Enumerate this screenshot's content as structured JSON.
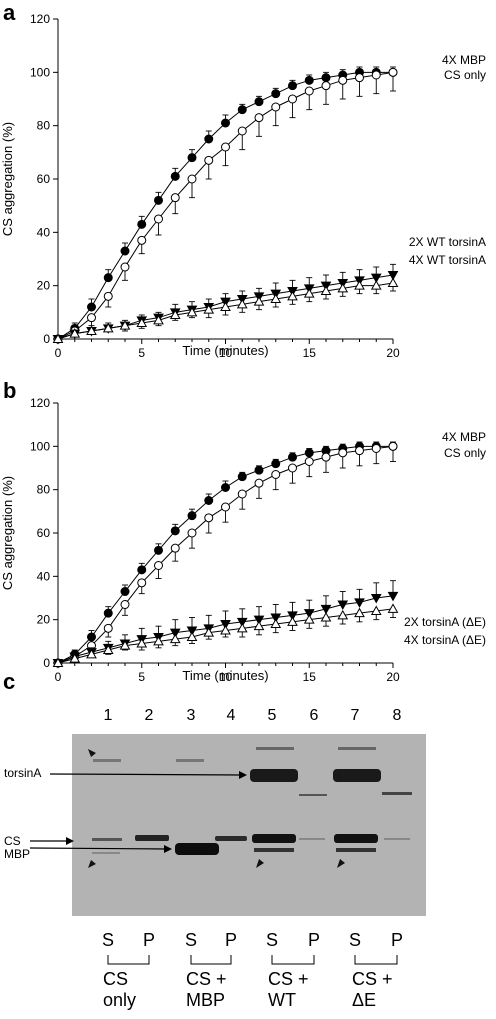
{
  "chart_data": [
    {
      "panel": "a",
      "type": "line",
      "xlabel": "Time (minutes)",
      "ylabel": "CS aggregation (%)",
      "xlim": [
        0,
        20
      ],
      "ylim": [
        0,
        120
      ],
      "xticks": [
        0,
        5,
        10,
        15,
        20
      ],
      "yticks": [
        0,
        20,
        40,
        60,
        80,
        100,
        120
      ],
      "x": [
        0,
        1,
        2,
        3,
        4,
        5,
        6,
        7,
        8,
        9,
        10,
        11,
        12,
        13,
        14,
        15,
        16,
        17,
        18,
        19,
        20
      ],
      "series": [
        {
          "name": "4X MBP",
          "marker": "filled-circle",
          "values": [
            0,
            4,
            12,
            23,
            33,
            43,
            52,
            61,
            68,
            75,
            81,
            86,
            89,
            92,
            95,
            97,
            98,
            99,
            100,
            100,
            100
          ],
          "errors": [
            0,
            2,
            3,
            3,
            3,
            3,
            3,
            3,
            3,
            3,
            3,
            2,
            2,
            2,
            2,
            2,
            2,
            2,
            2,
            2,
            2
          ]
        },
        {
          "name": "CS only",
          "marker": "open-circle",
          "values": [
            0,
            3,
            8,
            16,
            27,
            37,
            45,
            53,
            60,
            67,
            72,
            78,
            83,
            87,
            90,
            93,
            95,
            97,
            98,
            99,
            100
          ],
          "errors": [
            0,
            2,
            3,
            4,
            5,
            5,
            6,
            6,
            7,
            7,
            7,
            7,
            7,
            7,
            7,
            7,
            7,
            7,
            7,
            7,
            7
          ]
        },
        {
          "name": "2X WT torsinA",
          "marker": "filled-triangle-down",
          "values": [
            0,
            2,
            3,
            4,
            5,
            7,
            8,
            10,
            11,
            12,
            14,
            15,
            16,
            17,
            18,
            19,
            20,
            21,
            22,
            23,
            24
          ],
          "errors": [
            0,
            1,
            1,
            2,
            2,
            2,
            2,
            3,
            3,
            3,
            3,
            3,
            3,
            4,
            4,
            4,
            4,
            4,
            4,
            4,
            4
          ]
        },
        {
          "name": "4X WT torsinA",
          "marker": "open-triangle-up",
          "values": [
            0,
            2,
            3,
            4,
            5,
            6,
            7,
            9,
            10,
            11,
            12,
            13,
            14,
            15,
            16,
            17,
            18,
            19,
            20,
            20,
            21
          ],
          "errors": [
            0,
            1,
            1,
            1,
            2,
            2,
            2,
            2,
            2,
            3,
            3,
            3,
            3,
            3,
            3,
            3,
            3,
            3,
            3,
            3,
            3
          ]
        }
      ]
    },
    {
      "panel": "b",
      "type": "line",
      "xlabel": "Time (minutes)",
      "ylabel": "CS aggregation (%)",
      "xlim": [
        0,
        20
      ],
      "ylim": [
        0,
        120
      ],
      "xticks": [
        0,
        5,
        10,
        15,
        20
      ],
      "yticks": [
        0,
        20,
        40,
        60,
        80,
        100,
        120
      ],
      "x": [
        0,
        1,
        2,
        3,
        4,
        5,
        6,
        7,
        8,
        9,
        10,
        11,
        12,
        13,
        14,
        15,
        16,
        17,
        18,
        19,
        20
      ],
      "series": [
        {
          "name": "4X MBP",
          "marker": "filled-circle",
          "values": [
            0,
            4,
            12,
            23,
            33,
            43,
            52,
            61,
            68,
            75,
            81,
            86,
            89,
            92,
            95,
            97,
            98,
            99,
            100,
            100,
            100
          ],
          "errors": [
            0,
            2,
            3,
            3,
            3,
            3,
            3,
            3,
            3,
            3,
            3,
            2,
            2,
            2,
            2,
            2,
            2,
            2,
            2,
            2,
            2
          ]
        },
        {
          "name": "CS only",
          "marker": "open-circle",
          "values": [
            0,
            3,
            8,
            16,
            27,
            37,
            45,
            53,
            60,
            67,
            72,
            78,
            83,
            87,
            90,
            93,
            95,
            97,
            98,
            99,
            100
          ],
          "errors": [
            0,
            2,
            3,
            4,
            5,
            5,
            6,
            6,
            7,
            7,
            7,
            7,
            7,
            7,
            7,
            7,
            7,
            7,
            7,
            7,
            7
          ]
        },
        {
          "name": "2X torsinA (ΔE)",
          "marker": "filled-triangle-down",
          "values": [
            0,
            3,
            5,
            7,
            9,
            11,
            12,
            14,
            15,
            16,
            18,
            19,
            20,
            21,
            22,
            23,
            25,
            27,
            28,
            30,
            31
          ],
          "errors": [
            0,
            1,
            2,
            3,
            4,
            5,
            5,
            6,
            6,
            6,
            6,
            6,
            6,
            6,
            6,
            6,
            6,
            6,
            6,
            7,
            7
          ]
        },
        {
          "name": "4X torsinA (ΔE)",
          "marker": "open-triangle-up",
          "values": [
            0,
            2,
            4,
            6,
            8,
            9,
            10,
            11,
            12,
            14,
            15,
            16,
            17,
            18,
            19,
            20,
            21,
            22,
            23,
            24,
            25
          ],
          "errors": [
            0,
            1,
            1,
            2,
            2,
            3,
            3,
            3,
            3,
            3,
            3,
            4,
            4,
            4,
            4,
            4,
            4,
            4,
            4,
            4,
            4
          ]
        }
      ]
    }
  ],
  "panels": {
    "a": {
      "letter": "a"
    },
    "b": {
      "letter": "b"
    },
    "c": {
      "letter": "c"
    }
  },
  "gel": {
    "lanes": [
      "1",
      "2",
      "3",
      "4",
      "5",
      "6",
      "7",
      "8"
    ],
    "band_labels": {
      "torsinA": "torsinA",
      "cs": "CS",
      "mbp": "MBP"
    },
    "sp": [
      "S",
      "P",
      "S",
      "P",
      "S",
      "P",
      "S",
      "P"
    ],
    "groups": [
      {
        "line1": "CS",
        "line2": "only"
      },
      {
        "line1": "CS +",
        "line2": "MBP"
      },
      {
        "line1": "CS +",
        "line2": "WT"
      },
      {
        "line1": "CS +",
        "line2": "ΔE"
      }
    ]
  }
}
